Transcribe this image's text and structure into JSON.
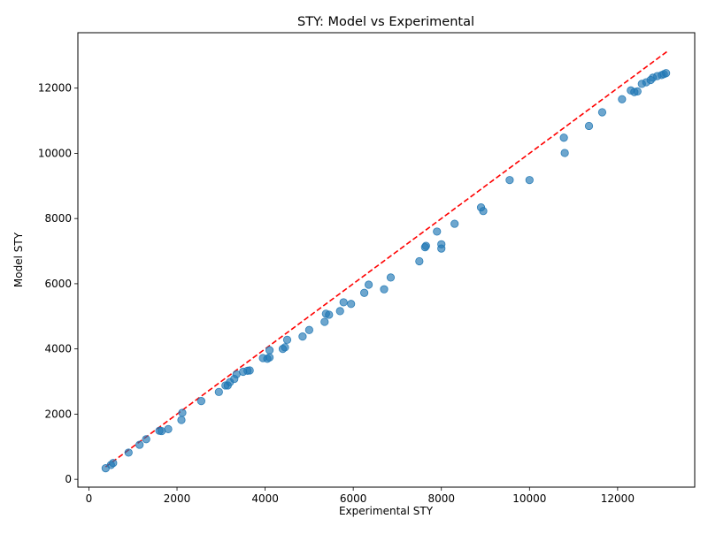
{
  "chart_data": {
    "type": "scatter",
    "title": "STY: Model vs Experimental",
    "xlabel": "Experimental STY",
    "ylabel": "Model STY",
    "xlim": [
      -250,
      13750
    ],
    "ylim": [
      -240,
      13700
    ],
    "xticks": [
      0,
      2000,
      4000,
      6000,
      8000,
      10000,
      12000
    ],
    "yticks": [
      0,
      2000,
      4000,
      6000,
      8000,
      10000,
      12000
    ],
    "grid": false,
    "point_color": "#1f77b4",
    "reference_line": {
      "x": [
        380,
        13130
      ],
      "y": [
        380,
        13130
      ],
      "color": "#ff0000",
      "style": "dashed"
    },
    "points": [
      {
        "x": 380,
        "y": 340
      },
      {
        "x": 500,
        "y": 440
      },
      {
        "x": 550,
        "y": 500
      },
      {
        "x": 900,
        "y": 820
      },
      {
        "x": 1150,
        "y": 1060
      },
      {
        "x": 1300,
        "y": 1230
      },
      {
        "x": 1600,
        "y": 1490
      },
      {
        "x": 1650,
        "y": 1480
      },
      {
        "x": 1800,
        "y": 1540
      },
      {
        "x": 2100,
        "y": 1820
      },
      {
        "x": 2120,
        "y": 2040
      },
      {
        "x": 2550,
        "y": 2400
      },
      {
        "x": 2950,
        "y": 2680
      },
      {
        "x": 3100,
        "y": 2880
      },
      {
        "x": 3150,
        "y": 2880
      },
      {
        "x": 3200,
        "y": 2980
      },
      {
        "x": 3300,
        "y": 3080
      },
      {
        "x": 3350,
        "y": 3220
      },
      {
        "x": 3500,
        "y": 3300
      },
      {
        "x": 3600,
        "y": 3330
      },
      {
        "x": 3650,
        "y": 3340
      },
      {
        "x": 3950,
        "y": 3720
      },
      {
        "x": 4050,
        "y": 3700
      },
      {
        "x": 4100,
        "y": 3740
      },
      {
        "x": 4100,
        "y": 3960
      },
      {
        "x": 4400,
        "y": 4000
      },
      {
        "x": 4450,
        "y": 4050
      },
      {
        "x": 4500,
        "y": 4280
      },
      {
        "x": 4850,
        "y": 4380
      },
      {
        "x": 5000,
        "y": 4580
      },
      {
        "x": 5350,
        "y": 4830
      },
      {
        "x": 5380,
        "y": 5080
      },
      {
        "x": 5450,
        "y": 5050
      },
      {
        "x": 5700,
        "y": 5160
      },
      {
        "x": 5780,
        "y": 5430
      },
      {
        "x": 5950,
        "y": 5380
      },
      {
        "x": 6250,
        "y": 5720
      },
      {
        "x": 6350,
        "y": 5970
      },
      {
        "x": 6700,
        "y": 5830
      },
      {
        "x": 6850,
        "y": 6190
      },
      {
        "x": 7500,
        "y": 6690
      },
      {
        "x": 7630,
        "y": 7120
      },
      {
        "x": 7650,
        "y": 7160
      },
      {
        "x": 7900,
        "y": 7600
      },
      {
        "x": 8000,
        "y": 7080
      },
      {
        "x": 8000,
        "y": 7210
      },
      {
        "x": 8300,
        "y": 7840
      },
      {
        "x": 8900,
        "y": 8340
      },
      {
        "x": 8950,
        "y": 8230
      },
      {
        "x": 9550,
        "y": 9180
      },
      {
        "x": 10000,
        "y": 9180
      },
      {
        "x": 10780,
        "y": 10480
      },
      {
        "x": 10800,
        "y": 10010
      },
      {
        "x": 11350,
        "y": 10840
      },
      {
        "x": 11650,
        "y": 11260
      },
      {
        "x": 12100,
        "y": 11660
      },
      {
        "x": 12300,
        "y": 11930
      },
      {
        "x": 12380,
        "y": 11880
      },
      {
        "x": 12450,
        "y": 11900
      },
      {
        "x": 12550,
        "y": 12130
      },
      {
        "x": 12650,
        "y": 12180
      },
      {
        "x": 12750,
        "y": 12250
      },
      {
        "x": 12800,
        "y": 12320
      },
      {
        "x": 12900,
        "y": 12370
      },
      {
        "x": 13000,
        "y": 12400
      },
      {
        "x": 13050,
        "y": 12430
      },
      {
        "x": 13100,
        "y": 12460
      }
    ]
  }
}
